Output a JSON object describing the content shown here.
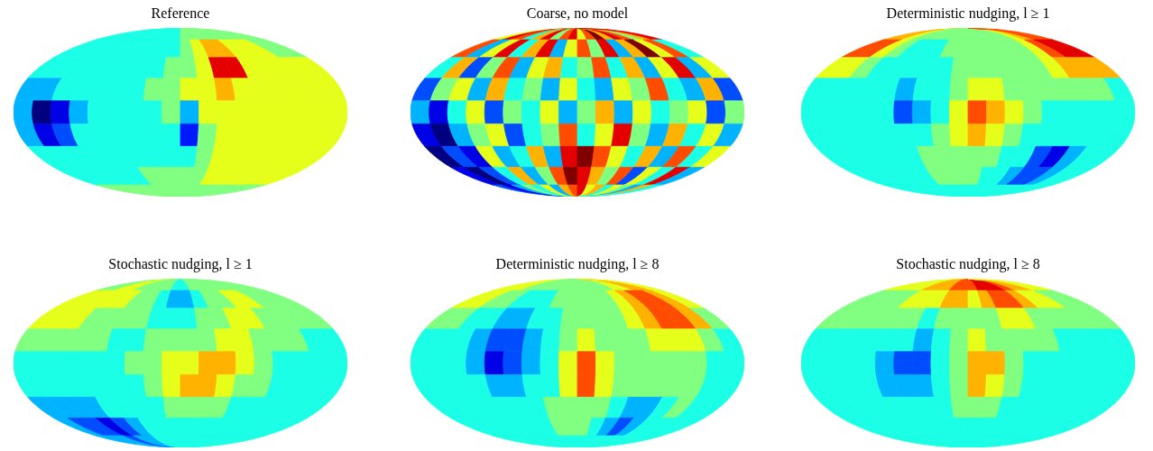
{
  "chart_data": [
    {
      "type": "heatmap",
      "title": "Reference",
      "tick_labels": false,
      "zlim": [
        0,
        10
      ],
      "x": [
        -170,
        -150,
        -130,
        -110,
        -90,
        -70,
        -50,
        -30,
        -10,
        10,
        30,
        50,
        70,
        90,
        110,
        130,
        150,
        170
      ],
      "y": [
        80,
        60,
        40,
        20,
        0,
        -20,
        -40,
        -60,
        -80
      ],
      "values": [
        [
          4,
          4,
          4,
          4,
          4,
          4,
          4,
          4,
          4,
          5,
          5,
          5,
          5,
          5,
          5,
          5,
          5,
          5
        ],
        [
          4,
          4,
          4,
          4,
          4,
          4,
          4,
          4,
          4,
          5,
          6,
          7,
          7,
          6,
          6,
          6,
          5,
          5
        ],
        [
          4,
          4,
          4,
          4,
          4,
          4,
          4,
          4,
          5,
          5,
          6,
          9,
          9,
          6,
          6,
          6,
          6,
          6
        ],
        [
          3,
          3,
          4,
          4,
          4,
          4,
          4,
          5,
          5,
          6,
          6,
          7,
          6,
          6,
          6,
          6,
          6,
          6
        ],
        [
          3,
          0,
          1,
          3,
          4,
          4,
          4,
          4,
          5,
          3,
          6,
          6,
          6,
          6,
          6,
          6,
          6,
          6
        ],
        [
          3,
          1,
          2,
          4,
          4,
          4,
          4,
          4,
          4,
          1.5,
          5,
          6,
          6,
          6,
          6,
          6,
          6,
          6
        ],
        [
          4,
          4,
          4,
          4,
          4,
          4,
          4,
          4,
          4,
          4,
          5,
          6,
          6,
          6,
          6,
          6,
          6,
          6
        ],
        [
          4,
          4,
          4,
          4,
          4,
          4,
          5,
          5,
          5,
          5,
          5,
          6,
          6,
          6,
          6,
          6,
          6,
          6
        ],
        [
          5,
          5,
          5,
          5,
          5,
          5,
          5,
          5,
          5,
          5,
          5,
          5,
          5,
          5,
          5,
          5,
          5,
          5
        ]
      ]
    },
    {
      "type": "heatmap",
      "title": "Coarse, no model",
      "tick_labels": false,
      "zlim": [
        0,
        10
      ],
      "x": [
        -170,
        -150,
        -130,
        -110,
        -90,
        -70,
        -50,
        -30,
        -10,
        10,
        30,
        50,
        70,
        90,
        110,
        130,
        150,
        170
      ],
      "y": [
        80,
        60,
        40,
        20,
        0,
        -20,
        -40,
        -60,
        -80
      ],
      "values": [
        [
          6,
          9,
          8,
          4,
          7,
          9,
          5,
          8,
          9,
          6,
          8,
          10,
          7,
          9,
          8,
          5,
          7,
          9
        ],
        [
          8,
          3,
          6,
          9,
          4,
          7,
          9,
          3,
          6,
          8,
          5,
          9,
          3,
          7,
          10,
          6,
          8,
          4
        ],
        [
          4,
          7,
          2,
          5,
          8,
          3,
          6,
          7,
          4,
          5,
          8,
          4,
          7,
          3,
          6,
          9,
          3,
          6
        ],
        [
          2,
          5,
          6,
          3,
          7,
          4,
          5,
          3,
          6,
          4,
          3,
          6,
          5,
          8,
          4,
          3,
          7,
          2
        ],
        [
          3,
          1,
          4,
          6,
          2,
          5,
          4,
          6,
          3,
          5,
          7,
          3,
          6,
          4,
          5,
          6,
          2,
          5
        ],
        [
          1,
          0,
          3,
          5,
          6,
          2,
          4,
          5,
          8,
          4,
          6,
          9,
          5,
          3,
          7,
          4,
          6,
          3
        ],
        [
          0,
          2,
          1,
          6,
          3,
          4,
          7,
          3,
          9,
          10,
          8,
          6,
          4,
          7,
          3,
          8,
          4,
          6
        ],
        [
          1,
          0,
          2,
          4,
          7,
          3,
          5,
          8,
          10,
          9,
          7,
          5,
          8,
          2,
          6,
          4,
          9,
          3
        ],
        [
          2,
          1,
          3,
          5,
          4,
          6,
          3,
          7,
          8,
          9,
          6,
          7,
          4,
          6,
          5,
          3,
          7,
          4
        ]
      ]
    },
    {
      "type": "heatmap",
      "title": "Deterministic nudging, l ≥ 1",
      "tick_labels": false,
      "zlim": [
        0,
        10
      ],
      "x": [
        -170,
        -150,
        -130,
        -110,
        -90,
        -70,
        -50,
        -30,
        -10,
        10,
        30,
        50,
        70,
        90,
        110,
        130,
        150,
        170
      ],
      "y": [
        80,
        60,
        40,
        20,
        0,
        -20,
        -40,
        -60,
        -80
      ],
      "values": [
        [
          7,
          7,
          6,
          5,
          5,
          5,
          5,
          5,
          5,
          5,
          5,
          5,
          5,
          5,
          6,
          7,
          8,
          8
        ],
        [
          8,
          8,
          6,
          5,
          4,
          4,
          4,
          5,
          5,
          5,
          5,
          5,
          5,
          5,
          6,
          8,
          9,
          9
        ],
        [
          6,
          6,
          5,
          4,
          4,
          4,
          4,
          4,
          5,
          5,
          5,
          5,
          5,
          5,
          6,
          7,
          7,
          7
        ],
        [
          4,
          4,
          4,
          4,
          4,
          3,
          4,
          4,
          5,
          6,
          6,
          5,
          5,
          5,
          5,
          5,
          5,
          4
        ],
        [
          4,
          4,
          4,
          4,
          4,
          2,
          3,
          4,
          6,
          8,
          7,
          6,
          5,
          4,
          4,
          4,
          4,
          4
        ],
        [
          4,
          4,
          4,
          4,
          4,
          4,
          4,
          5,
          6,
          7,
          6,
          5,
          4,
          4,
          4,
          4,
          4,
          4
        ],
        [
          4,
          4,
          4,
          4,
          4,
          4,
          5,
          5,
          5,
          5,
          5,
          4,
          4,
          2,
          1,
          3,
          4,
          4
        ],
        [
          4,
          4,
          4,
          4,
          4,
          4,
          5,
          5,
          5,
          5,
          4,
          4,
          3,
          2,
          2,
          3,
          4,
          4
        ],
        [
          4,
          4,
          4,
          4,
          4,
          4,
          4,
          4,
          4,
          4,
          4,
          4,
          4,
          4,
          4,
          4,
          4,
          4
        ]
      ]
    },
    {
      "type": "heatmap",
      "title": "Stochastic nudging, l ≥ 1",
      "tick_labels": false,
      "zlim": [
        0,
        10
      ],
      "x": [
        -170,
        -150,
        -130,
        -110,
        -90,
        -70,
        -50,
        -30,
        -10,
        10,
        30,
        50,
        70,
        90,
        110,
        130,
        150,
        170
      ],
      "y": [
        80,
        60,
        40,
        20,
        0,
        -20,
        -40,
        -60,
        -80
      ],
      "values": [
        [
          5,
          5,
          6,
          6,
          5,
          5,
          5,
          5,
          4,
          4,
          5,
          5,
          5,
          5,
          5,
          5,
          5,
          5
        ],
        [
          6,
          6,
          6,
          6,
          6,
          5,
          5,
          4,
          3,
          3,
          4,
          5,
          5,
          6,
          6,
          5,
          5,
          5
        ],
        [
          6,
          6,
          6,
          5,
          5,
          5,
          5,
          4,
          4,
          4,
          5,
          5,
          6,
          6,
          5,
          5,
          5,
          5
        ],
        [
          5,
          5,
          5,
          5,
          5,
          4,
          4,
          5,
          5,
          5,
          5,
          6,
          6,
          5,
          5,
          5,
          4,
          4
        ],
        [
          4,
          4,
          4,
          4,
          4,
          4,
          5,
          5,
          6,
          6,
          7,
          7,
          6,
          5,
          4,
          4,
          4,
          4
        ],
        [
          4,
          4,
          4,
          4,
          4,
          4,
          4,
          5,
          6,
          7,
          7,
          6,
          5,
          5,
          4,
          4,
          4,
          4
        ],
        [
          3,
          3,
          3,
          3,
          4,
          4,
          4,
          4,
          5,
          5,
          5,
          5,
          4,
          4,
          4,
          4,
          4,
          4
        ],
        [
          3,
          2,
          2,
          1,
          2,
          3,
          4,
          4,
          4,
          4,
          4,
          4,
          4,
          4,
          4,
          4,
          4,
          4
        ],
        [
          3,
          3,
          3,
          2,
          3,
          3,
          4,
          4,
          4,
          4,
          4,
          4,
          4,
          4,
          4,
          4,
          4,
          4
        ]
      ]
    },
    {
      "type": "heatmap",
      "title": "Deterministic nudging, l ≥ 8",
      "tick_labels": false,
      "zlim": [
        0,
        10
      ],
      "x": [
        -170,
        -150,
        -130,
        -110,
        -90,
        -70,
        -50,
        -30,
        -10,
        10,
        30,
        50,
        70,
        90,
        110,
        130,
        150,
        170
      ],
      "y": [
        80,
        60,
        40,
        20,
        0,
        -20,
        -40,
        -60,
        -80
      ],
      "values": [
        [
          6,
          6,
          6,
          5,
          5,
          5,
          5,
          5,
          5,
          5,
          5,
          5,
          5,
          6,
          6,
          7,
          7,
          6
        ],
        [
          6,
          6,
          5,
          5,
          4,
          4,
          4,
          5,
          5,
          5,
          5,
          5,
          6,
          7,
          8,
          8,
          7,
          6
        ],
        [
          5,
          5,
          4,
          4,
          3,
          3,
          4,
          4,
          5,
          5,
          5,
          5,
          6,
          7,
          8,
          8,
          7,
          5
        ],
        [
          4,
          4,
          4,
          3,
          2,
          2,
          3,
          4,
          5,
          6,
          5,
          5,
          5,
          6,
          6,
          6,
          5,
          4
        ],
        [
          4,
          4,
          4,
          3,
          1,
          2,
          3,
          4,
          6,
          8,
          6,
          5,
          5,
          5,
          5,
          5,
          4,
          4
        ],
        [
          4,
          4,
          4,
          4,
          3,
          3,
          4,
          4,
          6,
          8,
          6,
          5,
          5,
          5,
          5,
          5,
          4,
          4
        ],
        [
          4,
          4,
          4,
          4,
          4,
          4,
          4,
          5,
          5,
          5,
          5,
          4,
          3,
          3,
          4,
          5,
          4,
          4
        ],
        [
          4,
          4,
          4,
          4,
          4,
          4,
          4,
          5,
          5,
          5,
          4,
          3,
          2,
          3,
          4,
          4,
          4,
          4
        ],
        [
          4,
          4,
          4,
          4,
          4,
          4,
          4,
          4,
          4,
          4,
          4,
          4,
          4,
          4,
          4,
          4,
          4,
          4
        ]
      ]
    },
    {
      "type": "heatmap",
      "title": "Stochastic nudging, l ≥ 8",
      "tick_labels": false,
      "zlim": [
        0,
        10
      ],
      "x": [
        -170,
        -150,
        -130,
        -110,
        -90,
        -70,
        -50,
        -30,
        -10,
        10,
        30,
        50,
        70,
        90,
        110,
        130,
        150,
        170
      ],
      "y": [
        80,
        60,
        40,
        20,
        0,
        -20,
        -40,
        -60,
        -80
      ],
      "values": [
        [
          6,
          6,
          6,
          6,
          7,
          7,
          7,
          8,
          8,
          8,
          9,
          9,
          9,
          8,
          7,
          7,
          6,
          6
        ],
        [
          5,
          5,
          5,
          5,
          6,
          6,
          6,
          7,
          7,
          6,
          7,
          8,
          8,
          7,
          6,
          6,
          5,
          5
        ],
        [
          5,
          5,
          5,
          5,
          5,
          5,
          4,
          5,
          5,
          5,
          5,
          6,
          6,
          5,
          5,
          5,
          5,
          5
        ],
        [
          4,
          4,
          4,
          4,
          4,
          4,
          3,
          4,
          5,
          6,
          5,
          5,
          5,
          5,
          4,
          4,
          4,
          4
        ],
        [
          4,
          4,
          4,
          4,
          3,
          2,
          2,
          4,
          5,
          7,
          7,
          5,
          4,
          4,
          4,
          4,
          4,
          4
        ],
        [
          4,
          4,
          4,
          4,
          3,
          3,
          3,
          4,
          5,
          7,
          6,
          5,
          4,
          4,
          4,
          4,
          4,
          4
        ],
        [
          4,
          4,
          4,
          4,
          4,
          4,
          4,
          4,
          5,
          5,
          5,
          4,
          4,
          4,
          4,
          4,
          4,
          4
        ],
        [
          4,
          4,
          4,
          4,
          4,
          4,
          4,
          4,
          4,
          4,
          4,
          4,
          4,
          4,
          4,
          4,
          4,
          4
        ],
        [
          4,
          4,
          4,
          4,
          4,
          4,
          4,
          4,
          4,
          4,
          4,
          4,
          4,
          4,
          4,
          4,
          4,
          4
        ]
      ]
    }
  ]
}
